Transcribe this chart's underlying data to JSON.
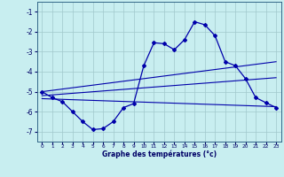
{
  "x_ticks": [
    0,
    1,
    2,
    3,
    4,
    5,
    6,
    7,
    8,
    9,
    10,
    11,
    12,
    13,
    14,
    15,
    16,
    17,
    18,
    19,
    20,
    21,
    22,
    23
  ],
  "line1_x": [
    0,
    1,
    2,
    3,
    4,
    5,
    6,
    7,
    8,
    9,
    10,
    11,
    12,
    13,
    14,
    15,
    16,
    17,
    18,
    19,
    20,
    21,
    22,
    23
  ],
  "line1_y": [
    -5.0,
    -5.3,
    -5.5,
    -6.0,
    -6.5,
    -6.9,
    -6.85,
    -6.5,
    -5.8,
    -5.6,
    -3.7,
    -2.55,
    -2.6,
    -2.9,
    -2.4,
    -1.5,
    -1.65,
    -2.2,
    -3.5,
    -3.7,
    -4.35,
    -5.3,
    -5.55,
    -5.8
  ],
  "line2_x": [
    0,
    23
  ],
  "line2_y": [
    -5.0,
    -3.5
  ],
  "line3_x": [
    0,
    23
  ],
  "line3_y": [
    -5.2,
    -4.3
  ],
  "line4_x": [
    0,
    23
  ],
  "line4_y": [
    -5.35,
    -5.75
  ],
  "ylim": [
    -7.5,
    -0.5
  ],
  "xlim": [
    -0.5,
    23.5
  ],
  "yticks": [
    -7,
    -6,
    -5,
    -4,
    -3,
    -2,
    -1
  ],
  "xlabel": "Graphe des températures (°c)",
  "bg_color": "#c8eef0",
  "line_color": "#0000aa",
  "grid_color": "#a0c8cc",
  "title": ""
}
